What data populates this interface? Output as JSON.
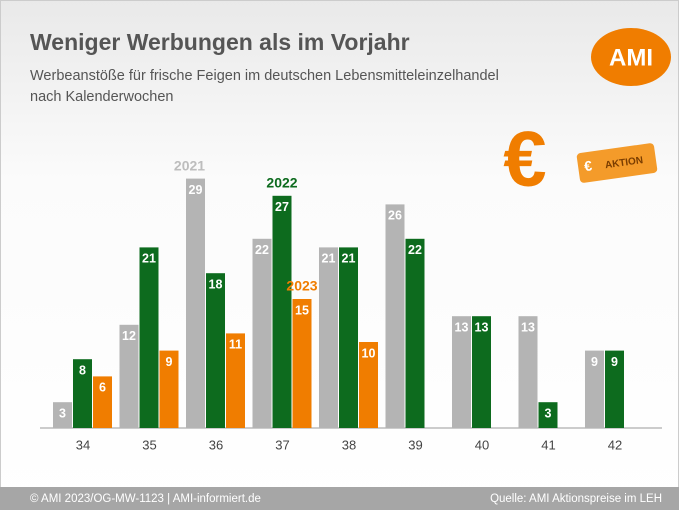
{
  "chart_data": {
    "type": "bar",
    "title": "Weniger Werbungen als im Vorjahr",
    "subtitle": [
      "Werbeanstöße für frische Feigen im deutschen Lebensmitteleinzelhandel",
      "nach Kalenderwochen"
    ],
    "logo": "AMI",
    "badge_text": "AKTION",
    "categories": [
      "34",
      "35",
      "36",
      "37",
      "38",
      "39",
      "40",
      "41",
      "42"
    ],
    "series": [
      {
        "name": "2021",
        "color": "#b4b4b4",
        "values": [
          3,
          12,
          29,
          22,
          21,
          26,
          13,
          13,
          9
        ]
      },
      {
        "name": "2022",
        "color": "#0d6b1e",
        "values": [
          8,
          21,
          18,
          27,
          21,
          22,
          13,
          3,
          9
        ]
      },
      {
        "name": "2023",
        "color": "#f07d00",
        "values": [
          6,
          9,
          11,
          15,
          10,
          null,
          null,
          null,
          null
        ]
      }
    ],
    "ylim": [
      0,
      30
    ],
    "footer_left": "© AMI 2023/OG-MW-1123 | AMI-informiert.de",
    "footer_right": "Quelle: AMI Aktionspreise im LEH"
  }
}
